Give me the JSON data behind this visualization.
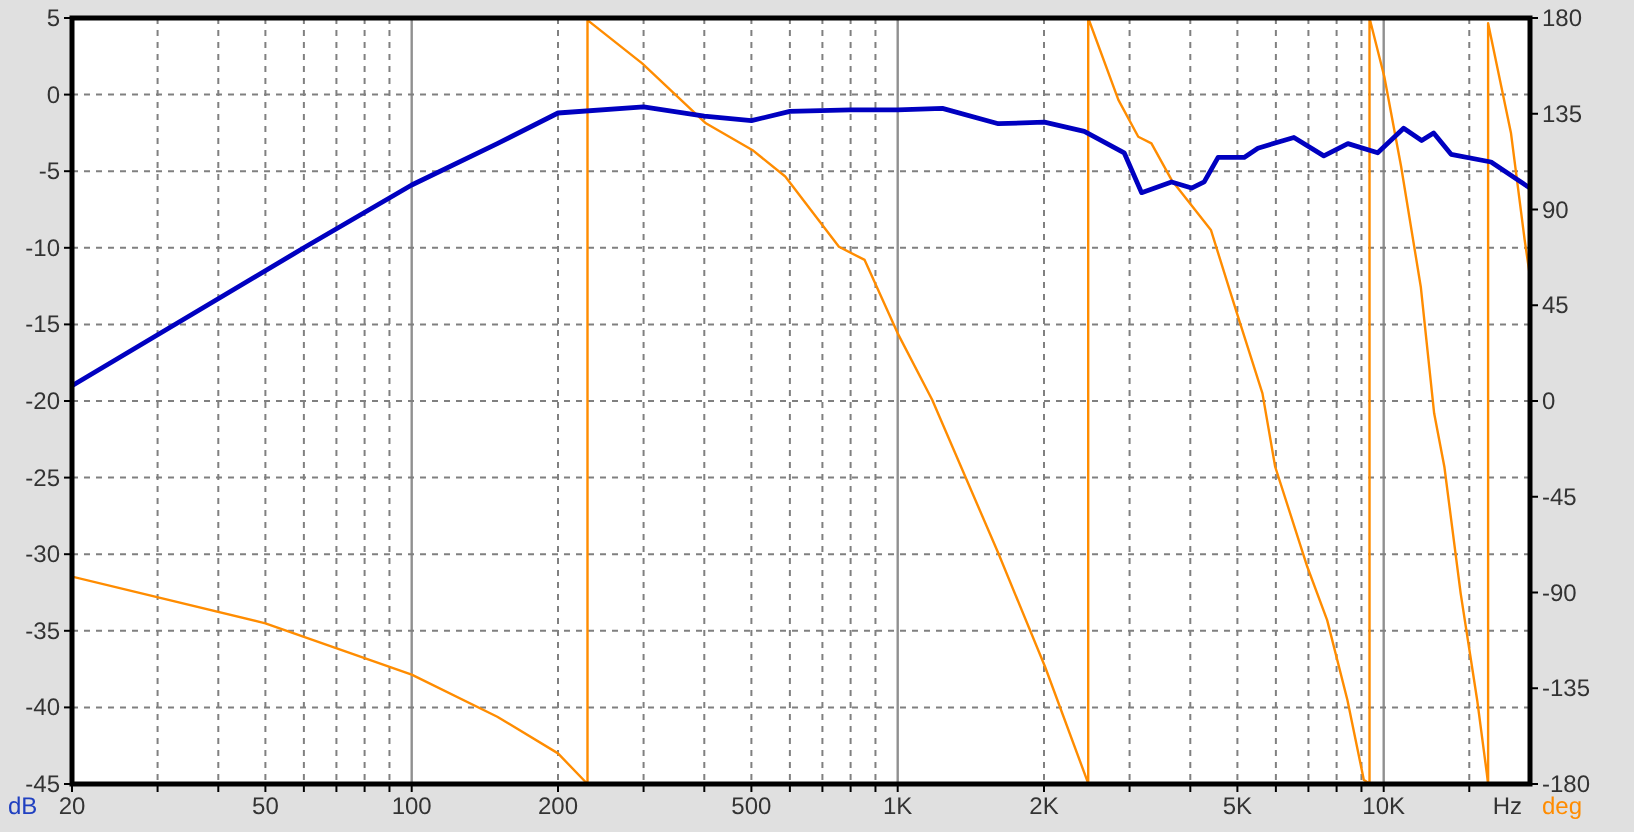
{
  "chart_data": {
    "type": "line",
    "log": "x",
    "grid": true,
    "xlabel": "Hz",
    "ylabel": "dB",
    "y2label": "deg",
    "xlim": [
      20,
      20000
    ],
    "xticks": [
      20,
      {
        "value": 30,
        "label": null
      },
      {
        "value": 40,
        "label": null
      },
      50,
      {
        "value": 60,
        "label": null
      },
      {
        "value": 70,
        "label": null
      },
      {
        "value": 80,
        "label": null
      },
      {
        "value": 90,
        "label": null
      },
      100,
      200,
      {
        "value": 300,
        "label": null
      },
      {
        "value": 400,
        "label": null
      },
      500,
      {
        "value": 600,
        "label": null
      },
      {
        "value": 700,
        "label": null
      },
      {
        "value": 800,
        "label": null
      },
      {
        "value": 900,
        "label": null
      },
      {
        "value": 1000,
        "label": "1K"
      },
      {
        "value": 2000,
        "label": "2K"
      },
      {
        "value": 3000,
        "label": null
      },
      {
        "value": 4000,
        "label": null
      },
      {
        "value": 5000,
        "label": "5K"
      },
      {
        "value": 6000,
        "label": null
      },
      {
        "value": 7000,
        "label": null
      },
      {
        "value": 8000,
        "label": null
      },
      {
        "value": 9000,
        "label": null
      },
      {
        "value": 10000,
        "label": "10K"
      },
      {
        "value": 15000,
        "label": null
      }
    ],
    "ylim": [
      -45,
      5
    ],
    "yticks": [
      5,
      0,
      -5,
      -10,
      -15,
      -20,
      -25,
      -30,
      -35,
      -40,
      -45
    ],
    "y2lim": [
      -180,
      180
    ],
    "y2ticks": [
      180,
      135,
      90,
      45,
      0,
      -45,
      -90,
      -135,
      -180
    ],
    "series": [
      {
        "color": "#0000c0",
        "x": [
          20,
          60,
          100,
          150,
          200,
          300,
          400,
          500,
          600,
          800,
          1000,
          1236,
          1611,
          2004,
          2421,
          2924,
          3175,
          3660,
          4025,
          4272,
          4563,
          5162,
          5510,
          6535,
          7530,
          8440,
          9720,
          10990,
          11970,
          12670,
          13760,
          16630,
          20000
        ],
        "values": [
          -19.0,
          -10.0,
          -5.9,
          -3.2,
          -1.2,
          -0.8,
          -1.4,
          -1.7,
          -1.1,
          -1.0,
          -1.0,
          -0.9,
          -1.9,
          -1.8,
          -2.4,
          -3.8,
          -6.4,
          -5.7,
          -6.1,
          -5.7,
          -4.1,
          -4.1,
          -3.5,
          -2.8,
          -4.0,
          -3.2,
          -3.8,
          -2.2,
          -3.0,
          -2.5,
          -3.9,
          -4.4,
          -6.1
        ]
      },
      {
        "color": "#ff8c00",
        "axis": "y2",
        "x": [
          20,
          50,
          100,
          150,
          200,
          230,
          230,
          298,
          403,
          502,
          587,
          757,
          855,
          1000,
          1178,
          1611,
          2010,
          2466,
          2466,
          2845,
          3126,
          3327,
          3660,
          4410,
          4990,
          5630,
          5980,
          6960,
          7650,
          8420,
          9100,
          9350,
          9350,
          10030,
          10860,
          11920,
          12700,
          13330,
          14400,
          15570,
          16300,
          16400,
          16400,
          18280,
          19500,
          20000
        ],
        "values": [
          -82.5,
          -104.5,
          -128.6,
          -148.4,
          -165.6,
          -180,
          179,
          158.7,
          130.5,
          118,
          105.5,
          72.5,
          66.3,
          31.8,
          0.5,
          -71.6,
          -124.9,
          -179.7,
          180,
          141.5,
          124.2,
          121.1,
          103.9,
          80.4,
          41.2,
          3.6,
          -30.9,
          -77.8,
          -103,
          -140.5,
          -178,
          -180,
          180,
          152.4,
          110.2,
          53.7,
          -5.8,
          -30.9,
          -90.4,
          -140.5,
          -175,
          -180,
          177.5,
          125.8,
          75.7,
          58.5
        ]
      }
    ]
  }
}
